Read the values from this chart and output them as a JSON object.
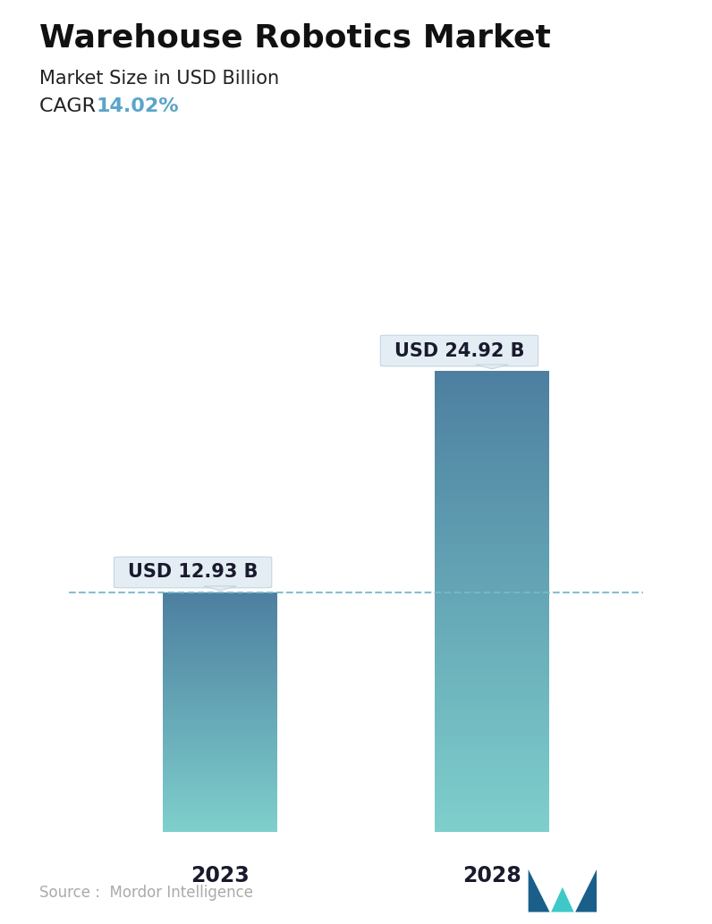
{
  "title": "Warehouse Robotics Market",
  "subtitle": "Market Size in USD Billion",
  "cagr_label": "CAGR  ",
  "cagr_value": "14.02%",
  "cagr_color": "#5aa5c8",
  "categories": [
    "2023",
    "2028"
  ],
  "values": [
    12.93,
    24.92
  ],
  "bar_labels": [
    "USD 12.93 B",
    "USD 24.92 B"
  ],
  "bar_color_top": "#4d7fa0",
  "bar_color_bottom": "#7ecfcc",
  "dashed_line_color": "#7ab8cc",
  "source_text": "Source :  Mordor Intelligence",
  "source_color": "#aaaaaa",
  "background_color": "#ffffff",
  "title_fontsize": 26,
  "subtitle_fontsize": 15,
  "cagr_fontsize": 16,
  "bar_label_fontsize": 15,
  "tick_label_fontsize": 17,
  "ylim": [
    0,
    30
  ],
  "xlim": [
    -0.6,
    1.6
  ]
}
